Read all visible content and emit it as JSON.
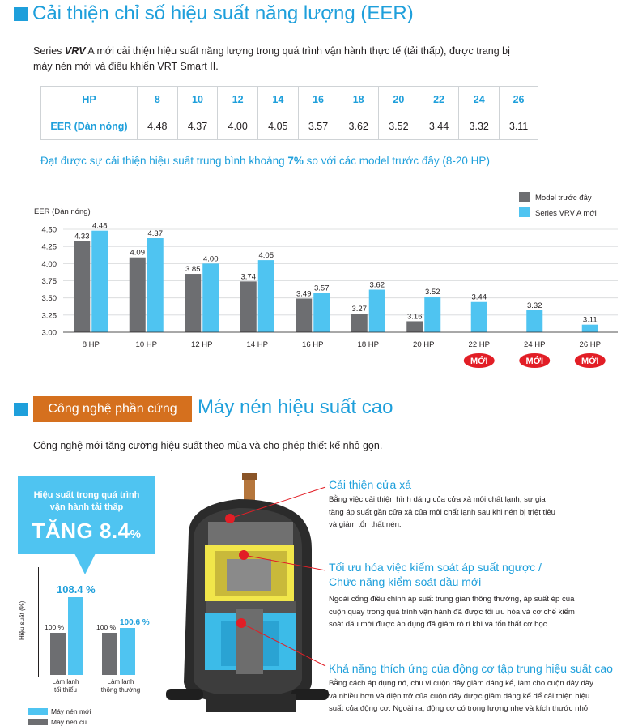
{
  "section1": {
    "title": "Cải thiện chỉ số hiệu suất năng lượng (EER)",
    "intro_line1": "Series VRV A mới cải thiện hiệu suất năng lượng trong quá trình vận hành thực tế (tải thấp), được trang bị",
    "intro_line2": "máy nén mới và điều khiển VRT Smart II.",
    "table": {
      "row1_label": "HP",
      "row2_label": "EER (Dàn nóng)",
      "hp": [
        "8",
        "10",
        "12",
        "14",
        "16",
        "18",
        "20",
        "22",
        "24",
        "26"
      ],
      "eer": [
        "4.48",
        "4.37",
        "4.00",
        "4.05",
        "3.57",
        "3.62",
        "3.52",
        "3.44",
        "3.32",
        "3.11"
      ]
    },
    "avg_pre": "Đạt được sự cải thiện hiệu suất trung bình khoảng ",
    "avg_pct": "7%",
    "avg_post": " so với các model trước đây (8-20 HP)"
  },
  "chart_data": {
    "type": "bar",
    "ylabel": "EER (Dàn nóng)",
    "ylim": [
      3.0,
      4.5
    ],
    "yticks": [
      "4.50",
      "4.25",
      "4.00",
      "3.75",
      "3.50",
      "3.25",
      "3.00"
    ],
    "categories": [
      "8 HP",
      "10 HP",
      "12 HP",
      "14 HP",
      "16 HP",
      "18 HP",
      "20 HP",
      "22 HP",
      "24 HP",
      "26 HP"
    ],
    "series": [
      {
        "name": "Model trước đây",
        "color": "#6d6e71",
        "values": [
          4.33,
          4.09,
          3.85,
          3.74,
          3.49,
          3.27,
          3.16,
          null,
          null,
          null
        ]
      },
      {
        "name": "Series VRV A mới",
        "color": "#4fc4f1",
        "values": [
          4.48,
          4.37,
          4.0,
          4.05,
          3.57,
          3.62,
          3.52,
          3.44,
          3.32,
          3.11
        ]
      }
    ],
    "new_badge": "MỚI",
    "new_badge_color": "#e21e26",
    "legend_position": "top-right",
    "grid": true
  },
  "section2": {
    "tag": "Công nghệ phần cứng",
    "title": "Máy nén hiệu suất cao",
    "intro": "Công nghệ mới tăng cường hiệu suất theo mùa và cho phép thiết kế nhỏ gọn.",
    "bubble_line1": "Hiệu suất trong quá trình",
    "bubble_line2": "vận hành tải thấp",
    "bubble_big": "TĂNG 8.4",
    "bubble_pct": "%",
    "mini_chart": {
      "ylabel": "Hiệu suất (%)",
      "groups": [
        {
          "label1": "Làm lạnh",
          "label2": "tối thiểu",
          "old": "100 %",
          "new": "108.4 %",
          "old_value": 100,
          "new_value": 108.4
        },
        {
          "label1": "Làm lạnh",
          "label2": "thông thường",
          "old": "100 %",
          "new": "100.6 %",
          "old_value": 100,
          "new_value": 100.6
        }
      ],
      "legend_new": "Máy nén mới",
      "legend_old": "Máy nén cũ"
    },
    "callouts": [
      {
        "title": "Cải thiện cửa xả",
        "lines": [
          "Bằng việc cải thiện hình dáng của cửa xả môi chất lạnh, sự gia",
          "tăng áp suất gần cửa xả của môi chất lạnh sau khi nén bị triệt tiêu",
          "và giảm tổn thất nén."
        ]
      },
      {
        "title": "Tối ưu hóa việc kiểm soát áp suất ngược /",
        "title2": "Chức năng kiểm soát dầu mới",
        "lines": [
          "Ngoài cổng điều chỉnh áp suất trung gian thông thường, áp suất ép của",
          "cuộn quay trong quá trình vận hành đã được tối ưu hóa và cơ chế kiểm",
          "soát dầu mới được áp dụng đã giảm rò rỉ khí và tổn thất cơ học."
        ]
      },
      {
        "title": "Khả năng thích ứng của động cơ tập trung hiệu suất cao",
        "lines": [
          "Bằng cách áp dụng nó, chu vi cuộn dây giảm đáng kể, làm cho cuộn dây dày",
          "và nhiều hơn và điện trở của cuộn dây được giảm đáng kể để cải thiện hiệu",
          "suất của động cơ. Ngoài ra, động cơ có trọng lượng nhẹ và kích thước nhỏ."
        ]
      }
    ]
  }
}
